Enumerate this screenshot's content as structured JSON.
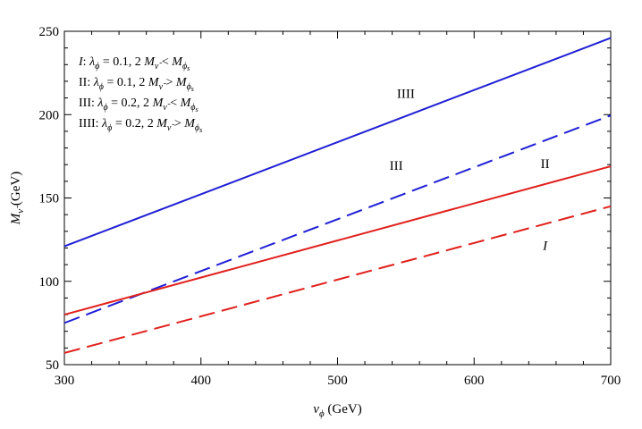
{
  "chart_data": {
    "type": "line",
    "xlim": [
      300,
      700
    ],
    "ylim": [
      50,
      250
    ],
    "xticks": [
      300,
      400,
      500,
      600,
      700
    ],
    "yticks": [
      50,
      100,
      150,
      200,
      250
    ],
    "xlabel": {
      "main": "v",
      "sub": "ϕ",
      "unit": " (GeV)"
    },
    "ylabel": {
      "main": "M",
      "sub": "ν̃",
      "unit": " (GeV)"
    },
    "grid": false,
    "series": [
      {
        "id": "IIII",
        "color": "#1f1fd6",
        "dash": "solid",
        "x": [
          300,
          700
        ],
        "y": [
          121,
          246
        ]
      },
      {
        "id": "III",
        "color": "#1f1fd6",
        "dash": "dashed",
        "x": [
          300,
          700
        ],
        "y": [
          75,
          199.5
        ]
      },
      {
        "id": "II",
        "color": "#e0201c",
        "dash": "solid",
        "x": [
          300,
          700
        ],
        "y": [
          80,
          169
        ]
      },
      {
        "id": "I",
        "color": "#e0201c",
        "dash": "dashed",
        "x": [
          300,
          700
        ],
        "y": [
          57,
          145
        ]
      }
    ],
    "curve_labels": [
      {
        "text": "IIII",
        "x": 550,
        "y": 210,
        "italic": false
      },
      {
        "text": "III",
        "x": 543,
        "y": 167,
        "italic": false
      },
      {
        "text": "II",
        "x": 652,
        "y": 168,
        "italic": false
      },
      {
        "text": "I",
        "x": 652,
        "y": 119,
        "italic": true
      }
    ],
    "legend": {
      "placement": "top-left",
      "entries": [
        {
          "id": "I",
          "lambda": "0.1",
          "relation": "<"
        },
        {
          "id": "II",
          "lambda": "0.1",
          "relation": ">"
        },
        {
          "id": "III",
          "lambda": "0.2",
          "relation": "<"
        },
        {
          "id": "IIII",
          "lambda": "0.2",
          "relation": ">"
        }
      ],
      "lambda_symbol": "λ",
      "lambda_sub": "ϕ",
      "mass_factor": "2",
      "m_symbol": "M",
      "m_sub_nu": "ν̃",
      "m_sub_phi": "ϕ",
      "m_sub_phi_sub": "s"
    }
  }
}
